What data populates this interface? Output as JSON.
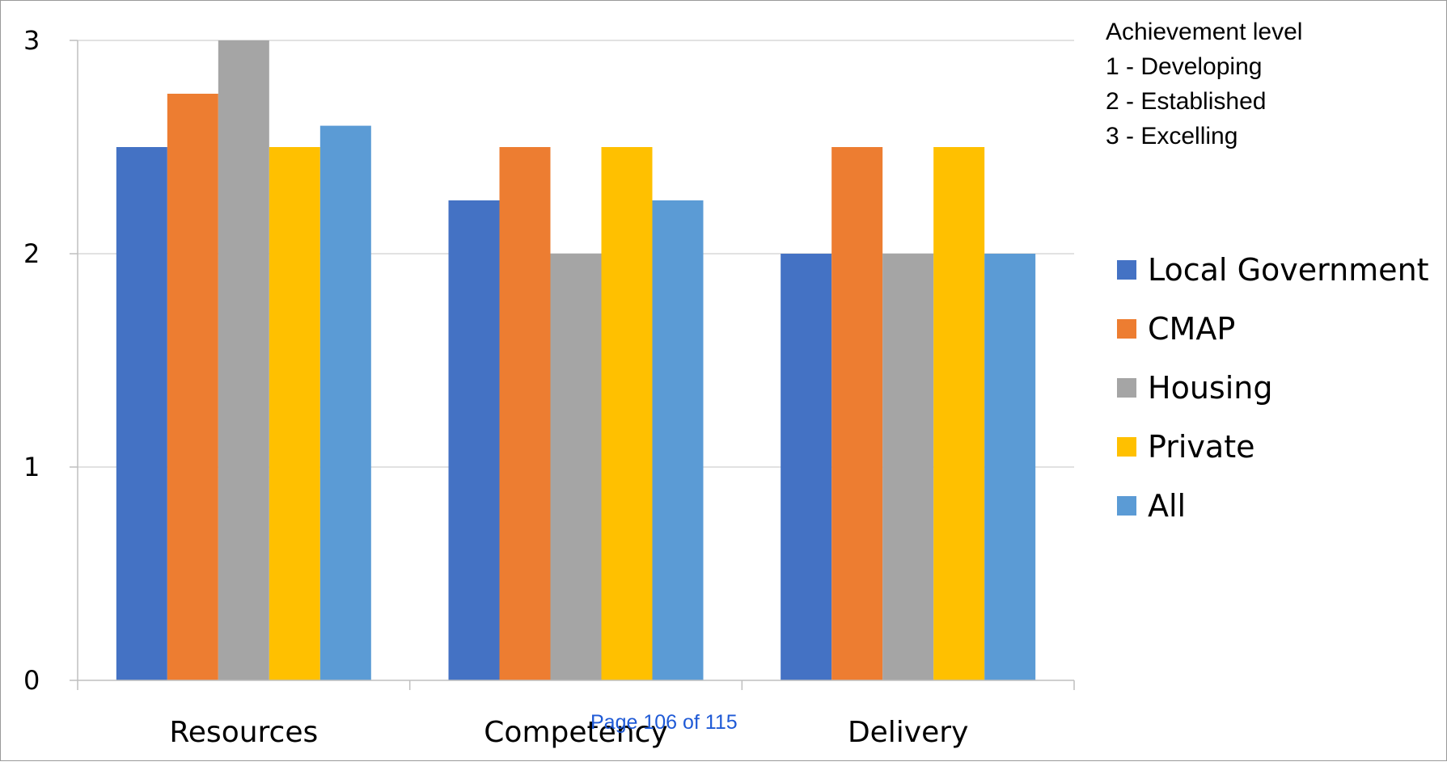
{
  "chart_data": {
    "type": "bar",
    "title": "",
    "xlabel": "",
    "ylabel": "",
    "categories": [
      "Resources",
      "Competency",
      "Delivery"
    ],
    "series": [
      {
        "name": "Local Government",
        "values": [
          2.5,
          2.25,
          2.0
        ],
        "color": "#4472C4"
      },
      {
        "name": "CMAP",
        "values": [
          2.75,
          2.5,
          2.5
        ],
        "color": "#ED7D31"
      },
      {
        "name": "Housing",
        "values": [
          3.0,
          2.0,
          2.0
        ],
        "color": "#A5A5A5"
      },
      {
        "name": "Private",
        "values": [
          2.5,
          2.5,
          2.5
        ],
        "color": "#FFC000"
      },
      {
        "name": "All",
        "values": [
          2.6,
          2.25,
          2.0
        ],
        "color": "#5B9BD5"
      }
    ],
    "ylim": [
      0,
      3
    ],
    "yticks": [
      0,
      1,
      2,
      3
    ],
    "grid": true,
    "legend_position": "right"
  },
  "annotation": {
    "heading": "Achievement level",
    "lines": [
      "1 - Developing",
      "2 - Established",
      "3 - Excelling"
    ]
  },
  "footer": {
    "page_label": "Page 106 of 115"
  },
  "colors": {
    "gridline": "#D9D9D9",
    "axis": "#BFBFBF",
    "footer_link": "#1F5AD6"
  }
}
